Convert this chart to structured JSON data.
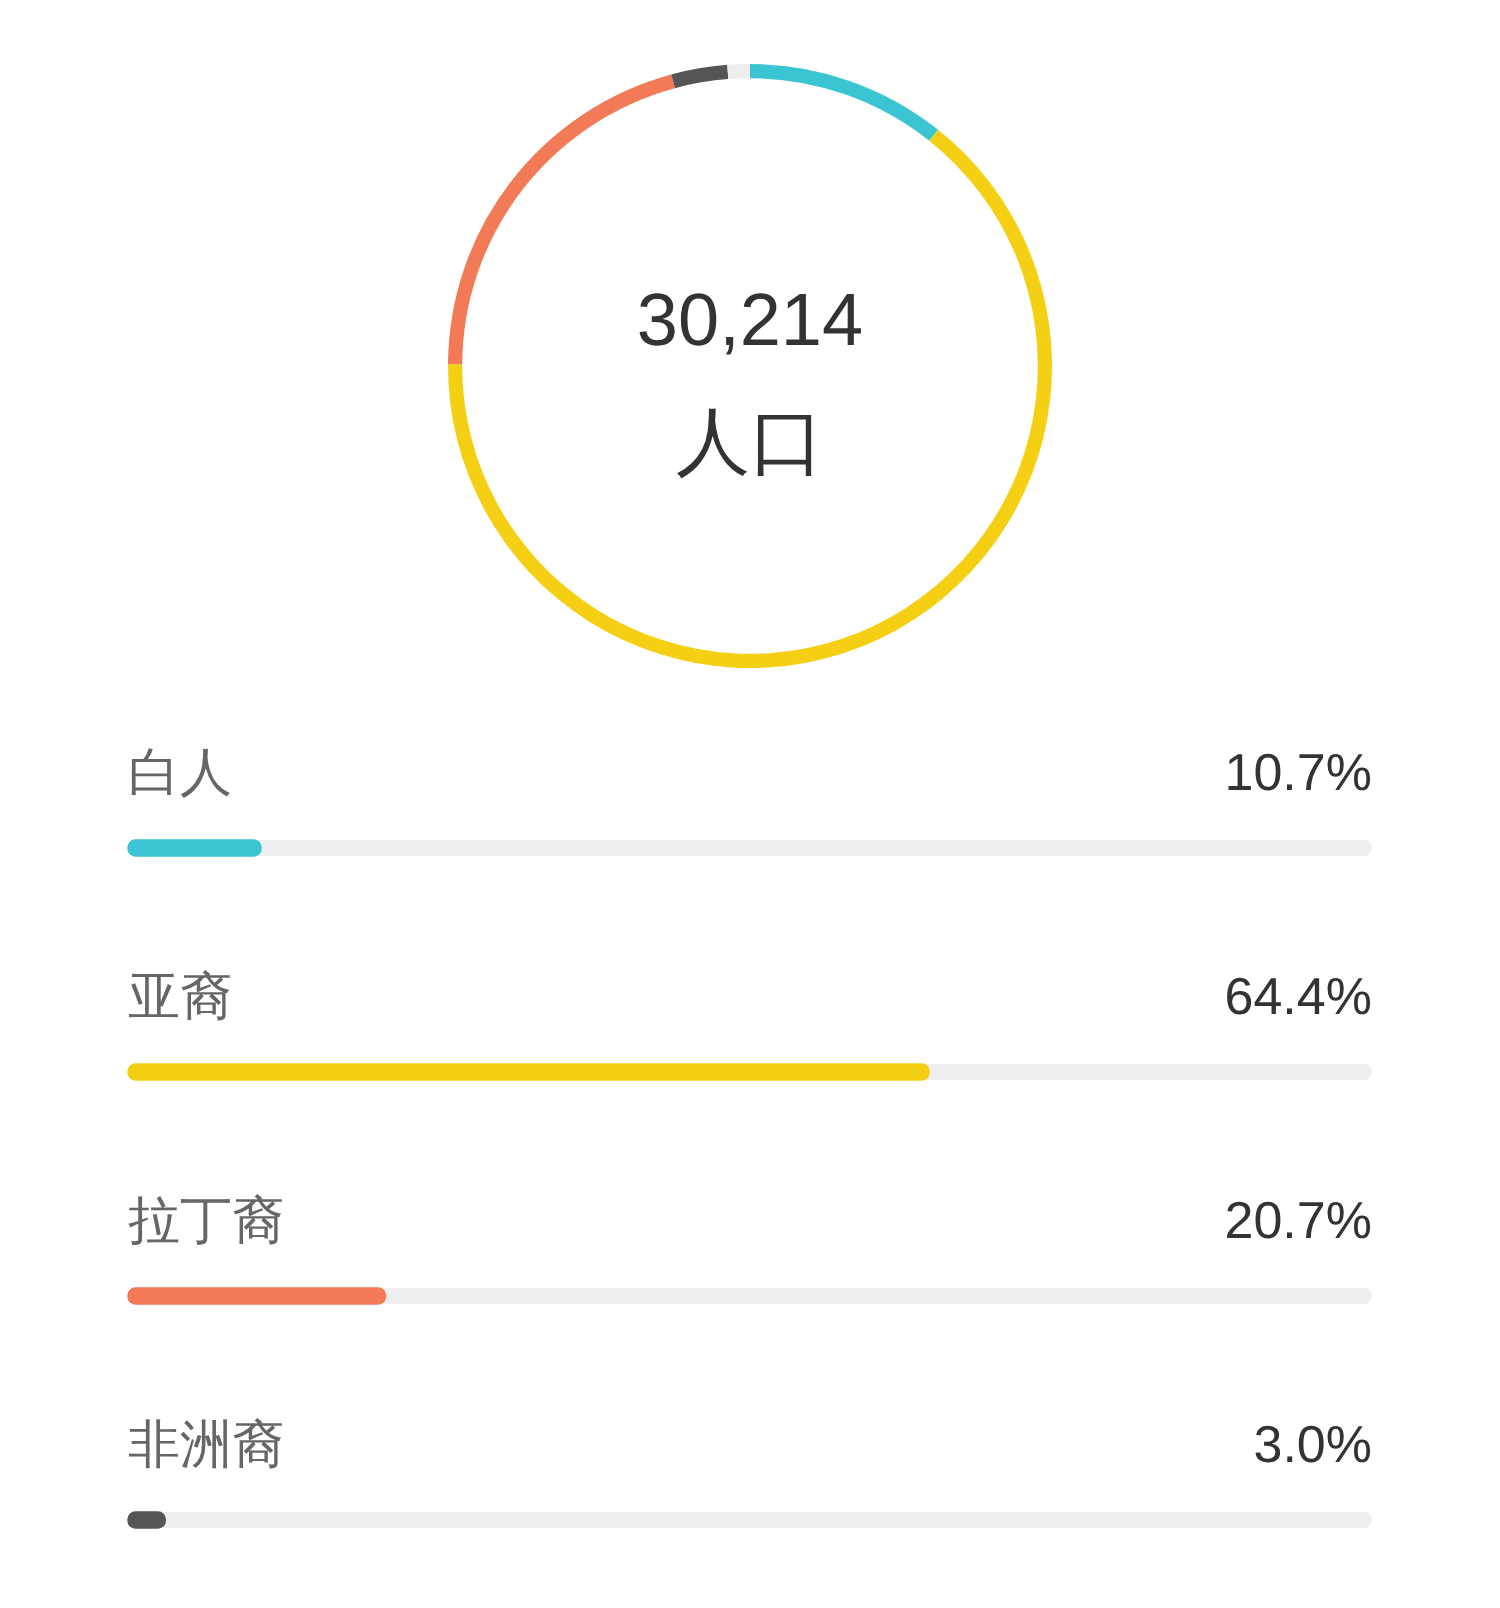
{
  "chart_data": [
    {
      "type": "donut",
      "categories": [
        null,
        null,
        null,
        null,
        null
      ],
      "values": [
        10.7,
        64.4,
        20.7,
        3.0,
        1.2
      ],
      "colors": [
        "#3bc5d2",
        "#f5cf14",
        "#f27a57",
        "#555555",
        "#eeeeee"
      ],
      "annotations": [
        "30,214",
        "人口"
      ]
    },
    {
      "type": "bar",
      "orientation": "horizontal",
      "categories": [
        "白人",
        "亚裔",
        "拉丁裔",
        "非洲裔"
      ],
      "values": [
        10.7,
        64.4,
        20.7,
        3.0
      ],
      "colors": [
        "#3bc5d2",
        "#f5cf14",
        "#f27a57",
        "#555555"
      ],
      "value_labels": [
        "10.7%",
        "64.4%",
        "20.7%",
        "3.0%"
      ],
      "xlim": [
        0,
        100
      ],
      "tick_labels": "y"
    }
  ]
}
